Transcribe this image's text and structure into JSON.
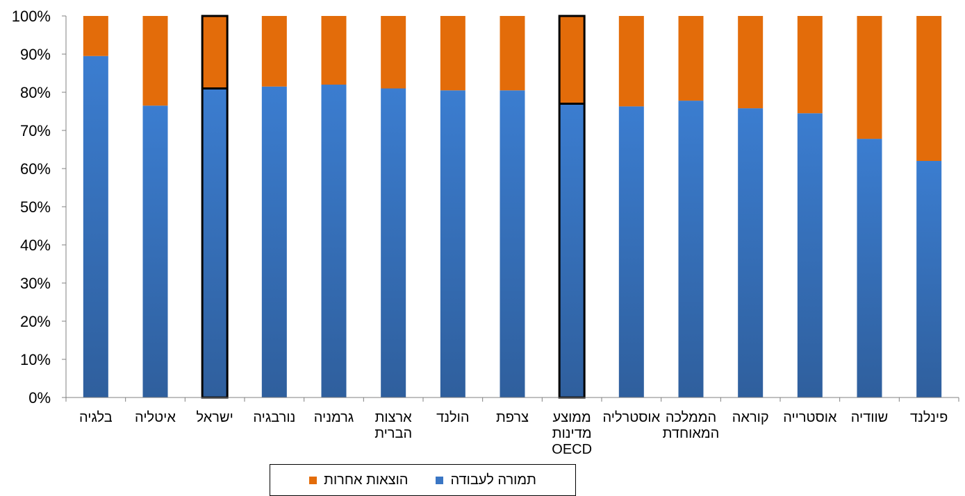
{
  "chart_data": {
    "type": "bar",
    "stacked": true,
    "percent": true,
    "categories": [
      "בלגיה",
      "איטליה",
      "ישראל",
      "נורבגיה",
      "גרמניה",
      "ארצות הברית",
      "הולנד",
      "צרפת",
      "ממוצע מדינות OECD",
      "אוסטרליה",
      "הממלכה המאוחדת",
      "קוראה",
      "אוסטרייה",
      "שוודיה",
      "פינלנד"
    ],
    "category_lines": [
      [
        "בלגיה"
      ],
      [
        "איטליה"
      ],
      [
        "ישראל"
      ],
      [
        "נורבגיה"
      ],
      [
        "גרמניה"
      ],
      [
        "ארצות",
        "הברית"
      ],
      [
        "הולנד"
      ],
      [
        "צרפת"
      ],
      [
        "ממוצע",
        "מדינות",
        "OECD"
      ],
      [
        "אוסטרליה"
      ],
      [
        "הממלכה",
        "המאוחדת"
      ],
      [
        "קוראה"
      ],
      [
        "אוסטרייה"
      ],
      [
        "שוודיה"
      ],
      [
        "פינלנד"
      ]
    ],
    "series": [
      {
        "name": "תמורה לעבודה",
        "color": "#3a76c4",
        "values": [
          89.5,
          76.5,
          81,
          81.5,
          82,
          81,
          80.5,
          80.5,
          77,
          76.3,
          77.8,
          75.8,
          74.5,
          67.8,
          62
        ]
      },
      {
        "name": "הוצאות אחרות",
        "color": "#e36c0a",
        "values": [
          10.5,
          23.5,
          19,
          18.5,
          18,
          19,
          19.5,
          19.5,
          23,
          23.7,
          22.2,
          24.2,
          25.5,
          32.2,
          38
        ]
      }
    ],
    "highlighted": [
      "ישראל",
      "ממוצע מדינות OECD"
    ],
    "ylim": [
      0,
      100
    ],
    "yticks": [
      "0%",
      "10%",
      "20%",
      "30%",
      "40%",
      "50%",
      "60%",
      "70%",
      "80%",
      "90%",
      "100%"
    ],
    "xlabel": "",
    "ylabel": "",
    "legend_position": "bottom"
  }
}
